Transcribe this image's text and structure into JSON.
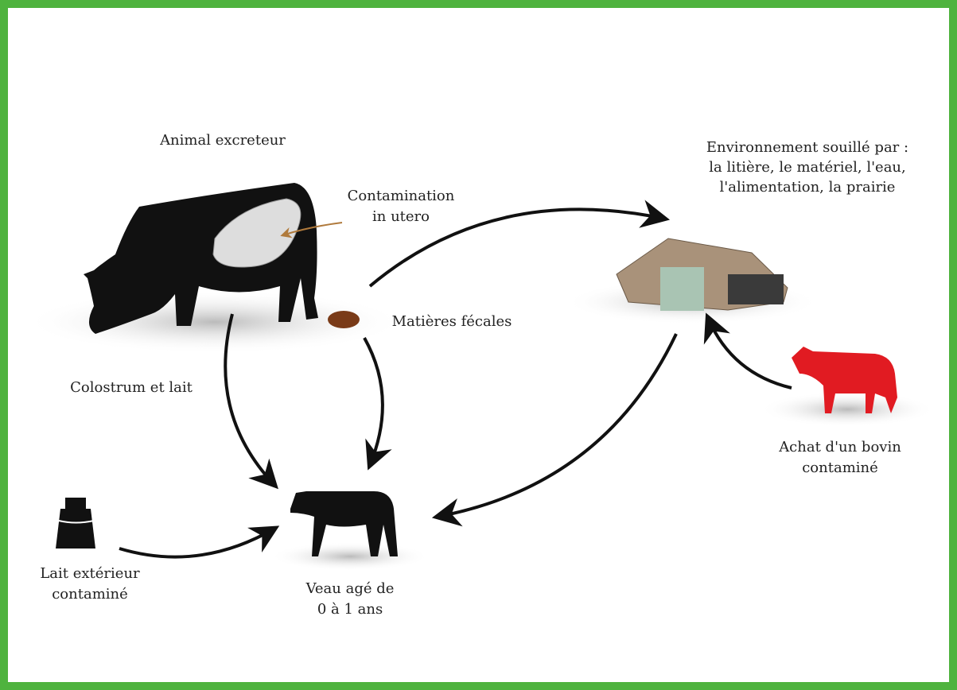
{
  "nodes": [
    {
      "lines": [
        "Animal excreteur"
      ]
    },
    {
      "lines": [
        "Contamination",
        "in utero"
      ]
    },
    {
      "lines": [
        "Matières fécales"
      ]
    },
    {
      "lines": [
        "Colostrum et lait"
      ]
    },
    {
      "lines": [
        "Environnement souillé par :",
        "la litière, le matériel, l'eau,",
        "l'alimentation, la prairie"
      ]
    },
    {
      "lines": [
        "Achat d'un bovin",
        "contaminé"
      ]
    },
    {
      "lines": [
        "Lait extérieur",
        "contaminé"
      ]
    },
    {
      "lines": [
        "Veau agé de",
        "0 à 1 ans"
      ]
    }
  ]
}
